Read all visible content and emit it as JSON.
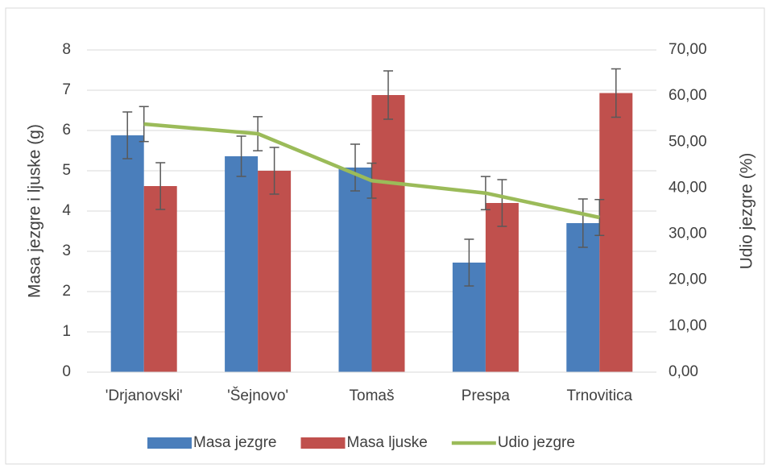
{
  "chart_data": {
    "type": "bar",
    "categories": [
      "'Drjanovski'",
      "'Šejnovo'",
      "Tomaš",
      "Prespa",
      "Trnovitica"
    ],
    "series": [
      {
        "name": "Masa jezgre",
        "type": "bar",
        "color": "#4a7ebb",
        "values": [
          5.88,
          5.36,
          5.08,
          2.72,
          3.7
        ],
        "errors": [
          0.58,
          0.5,
          0.58,
          0.58,
          0.6
        ]
      },
      {
        "name": "Masa ljuske",
        "type": "bar",
        "color": "#c0504d",
        "values": [
          4.62,
          5.0,
          6.88,
          4.2,
          6.93
        ],
        "errors": [
          0.58,
          0.58,
          0.6,
          0.58,
          0.6
        ]
      },
      {
        "name": "Udio jezgre",
        "type": "line",
        "axis": "y2",
        "color": "#9bbb59",
        "values": [
          53.9,
          51.8,
          41.6,
          38.9,
          33.6
        ],
        "errors": [
          3.8,
          3.7,
          3.8,
          3.6,
          3.9
        ]
      }
    ],
    "ylabel": "Masa jezgre i ljuske (g)",
    "y2label": "Udio jezgre (%)",
    "ylim": [
      0,
      8
    ],
    "yticks": [
      0,
      1,
      2,
      3,
      4,
      5,
      6,
      7,
      8
    ],
    "y2lim": [
      0,
      70
    ],
    "y2ticks": [
      {
        "value": 0,
        "label": "0,00"
      },
      {
        "value": 10,
        "label": "10,00"
      },
      {
        "value": 20,
        "label": "20,00"
      },
      {
        "value": 30,
        "label": "30,00"
      },
      {
        "value": 40,
        "label": "40,00"
      },
      {
        "value": 50,
        "label": "50,00"
      },
      {
        "value": 60,
        "label": "60,00"
      },
      {
        "value": 70,
        "label": "70,00"
      }
    ],
    "grid": true,
    "legend": "bottom"
  }
}
